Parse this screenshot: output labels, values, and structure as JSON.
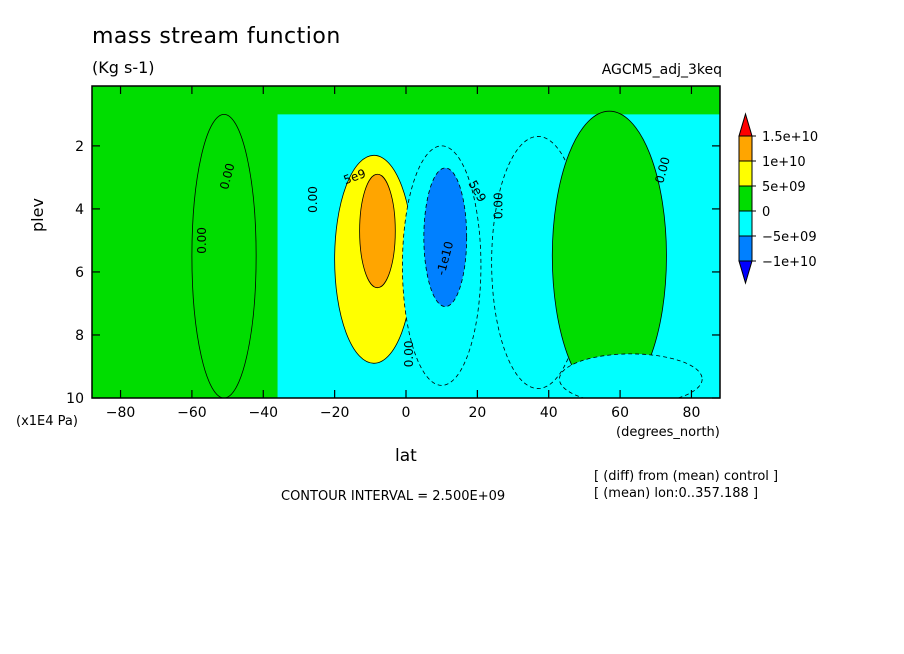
{
  "chart_data": {
    "type": "contour",
    "title": "mass stream function",
    "units": "(Kg s-1)",
    "experiment": "AGCM5_adj_3keq",
    "xlabel": "lat",
    "x_unit_label": "(degrees_north)",
    "ylabel": "plev",
    "y_unit_label": "(x1E4 Pa)",
    "xlim": [
      -88,
      88
    ],
    "ylim": [
      10,
      0.1
    ],
    "x_ticks": [
      -80,
      -60,
      -40,
      -20,
      0,
      20,
      40,
      60,
      80
    ],
    "y_ticks": [
      2,
      4,
      6,
      8,
      10
    ],
    "contour_interval_label": "CONTOUR INTERVAL = 2.500E+09",
    "notes": [
      "[ (diff) from (mean) control ]",
      "[ (mean) lon:0..357.188 ]"
    ],
    "colorbar": {
      "labels": [
        "1.5e+10",
        "1e+10",
        "5e+09",
        "0",
        "−5e+09",
        "−1e+10"
      ],
      "colors": [
        "#ff0000",
        "#ffa500",
        "#ffff00",
        "#00dd00",
        "#00ffff",
        "#0080ff",
        "#0000ff"
      ]
    },
    "contour_labels": [
      {
        "text": "5e9",
        "lat": -14,
        "plev": 3.1,
        "angle": -20
      },
      {
        "text": "0.00",
        "lat": -25,
        "plev": 3.7,
        "angle": -90
      },
      {
        "text": "0.00",
        "lat": -49,
        "plev": 3.0,
        "angle": -75
      },
      {
        "text": "0.00",
        "lat": -56,
        "plev": 5.0,
        "angle": -90
      },
      {
        "text": "0.00",
        "lat": 2,
        "plev": 8.6,
        "angle": -90
      },
      {
        "text": "-1e10",
        "lat": 12,
        "plev": 5.6,
        "angle": -75
      },
      {
        "text": "5e9",
        "lat": 19,
        "plev": 3.5,
        "angle": 60
      },
      {
        "text": "0.00",
        "lat": 27,
        "plev": 3.9,
        "angle": -90
      },
      {
        "text": "0.00",
        "lat": 73,
        "plev": 2.8,
        "angle": -75
      }
    ],
    "regions": [
      {
        "level": "0",
        "cx": -51,
        "cy": 5.5,
        "rx": 9,
        "ry": 4.5
      },
      {
        "level": "5e+09",
        "cx": -9,
        "cy": 5.6,
        "rx": 11,
        "ry": 3.3
      },
      {
        "level": "1e+10",
        "cx": -8,
        "cy": 4.7,
        "rx": 5,
        "ry": 1.8
      },
      {
        "level": "-5e+09",
        "cx": 10,
        "cy": 5.8,
        "rx": 11,
        "ry": 3.8
      },
      {
        "level": "-1e+10",
        "cx": 11,
        "cy": 4.9,
        "rx": 6,
        "ry": 2.2
      },
      {
        "level": "-5e+09",
        "cx": 37,
        "cy": 5.7,
        "rx": 13,
        "ry": 4.0
      },
      {
        "level": "0",
        "cx": 57,
        "cy": 5.5,
        "rx": 16,
        "ry": 4.6
      },
      {
        "level": "-5e+09",
        "cx": 63,
        "cy": 9.4,
        "rx": 20,
        "ry": 0.8
      }
    ]
  }
}
